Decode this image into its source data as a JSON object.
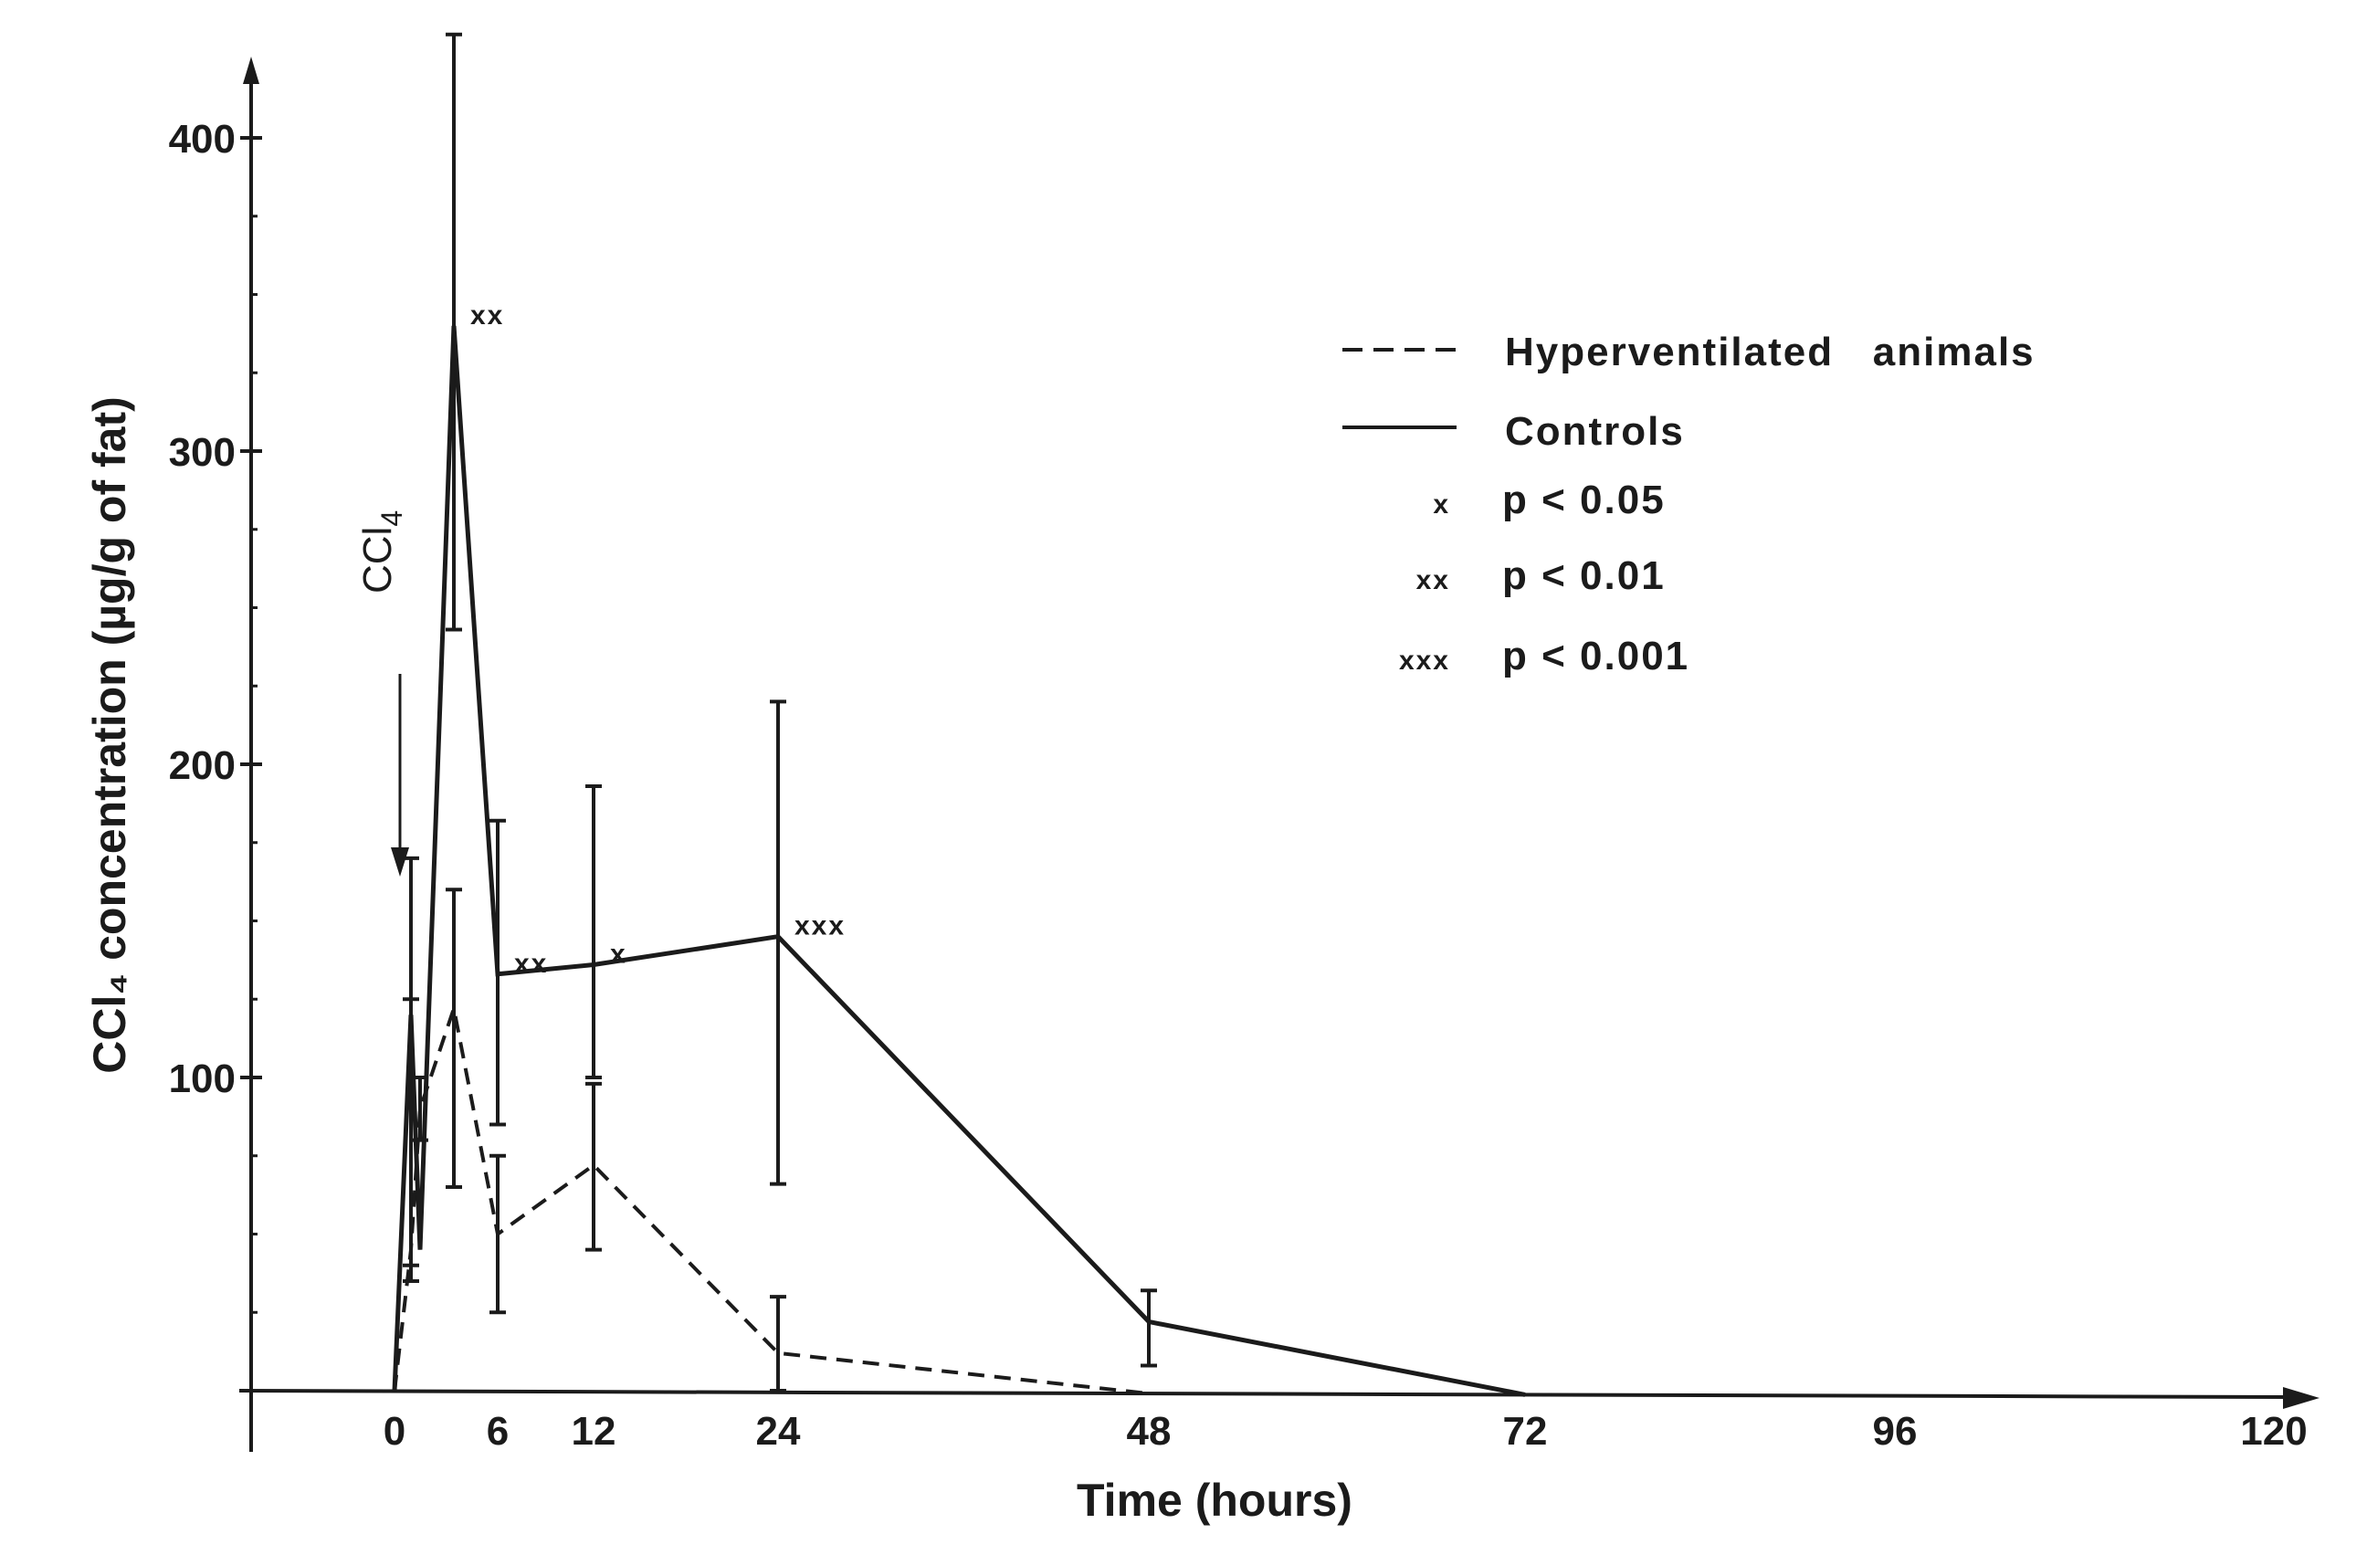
{
  "chart_data": {
    "type": "line",
    "xlabel": "Time (hours)",
    "ylabel": "CCl₄ concentration (µg/g of fat)",
    "x_ticks": [
      "0",
      "6",
      "12",
      "24",
      "48",
      "72",
      "96",
      "120"
    ],
    "y_ticks": [
      "100",
      "200",
      "300",
      "400"
    ],
    "xlim": [
      0,
      120
    ],
    "ylim": [
      0,
      430
    ],
    "grid": false,
    "legend_position": "top-right",
    "annotation": {
      "main": "CCl",
      "sub": "4"
    },
    "series": [
      {
        "name": "Hyperventilated animals",
        "style": "dashed",
        "points": [
          {
            "x": 0,
            "y": 0
          },
          {
            "x": 1,
            "y": 45
          },
          {
            "x": 2,
            "y": 90
          },
          {
            "x": 3.5,
            "y": 122
          },
          {
            "x": 6,
            "y": 50
          },
          {
            "x": 12,
            "y": 72
          },
          {
            "x": 24,
            "y": 12
          },
          {
            "x": 48,
            "y": 0
          }
        ],
        "error_bars": [
          {
            "x": 1,
            "low": 35,
            "high": 125
          },
          {
            "x": 2,
            "low": 80,
            "high": 100
          },
          {
            "x": 3.5,
            "low": 65,
            "high": 160
          },
          {
            "x": 6,
            "low": 25,
            "high": 75
          },
          {
            "x": 12,
            "low": 45,
            "high": 98
          },
          {
            "x": 24,
            "low": 0,
            "high": 30
          }
        ]
      },
      {
        "name": "Controls",
        "style": "solid",
        "points": [
          {
            "x": 0,
            "y": 0
          },
          {
            "x": 1,
            "y": 120
          },
          {
            "x": 2,
            "y": 45
          },
          {
            "x": 3.5,
            "y": 340
          },
          {
            "x": 6,
            "y": 133
          },
          {
            "x": 12,
            "y": 136
          },
          {
            "x": 24,
            "y": 145
          },
          {
            "x": 48,
            "y": 22
          },
          {
            "x": 72,
            "y": 0
          }
        ],
        "error_bars": [
          {
            "x": 1,
            "low": 40,
            "high": 170
          },
          {
            "x": 3.5,
            "low": 243,
            "high": 433
          },
          {
            "x": 6,
            "low": 85,
            "high": 182
          },
          {
            "x": 12,
            "low": 100,
            "high": 193
          },
          {
            "x": 24,
            "low": 66,
            "high": 220
          },
          {
            "x": 48,
            "low": 8,
            "high": 32
          }
        ]
      }
    ],
    "significance_marks": [
      {
        "x": 3.5,
        "y": 340,
        "mark": "xx"
      },
      {
        "x": 6,
        "y": 133,
        "mark": "xx"
      },
      {
        "x": 12,
        "y": 136,
        "mark": "x"
      },
      {
        "x": 24,
        "y": 145,
        "mark": "xxx"
      }
    ],
    "legend": {
      "series": [
        {
          "label": "Hyperventilated   animals",
          "style": "dashed"
        },
        {
          "label": "Controls",
          "style": "solid"
        }
      ],
      "significance": [
        {
          "symbol": "x",
          "label": "p < 0.05"
        },
        {
          "symbol": "xx",
          "label": "p < 0.01"
        },
        {
          "symbol": "xxx",
          "label": "p < 0.001"
        }
      ]
    },
    "colors": {
      "ink": "#1b1b1b",
      "paper": "#ffffff"
    }
  }
}
